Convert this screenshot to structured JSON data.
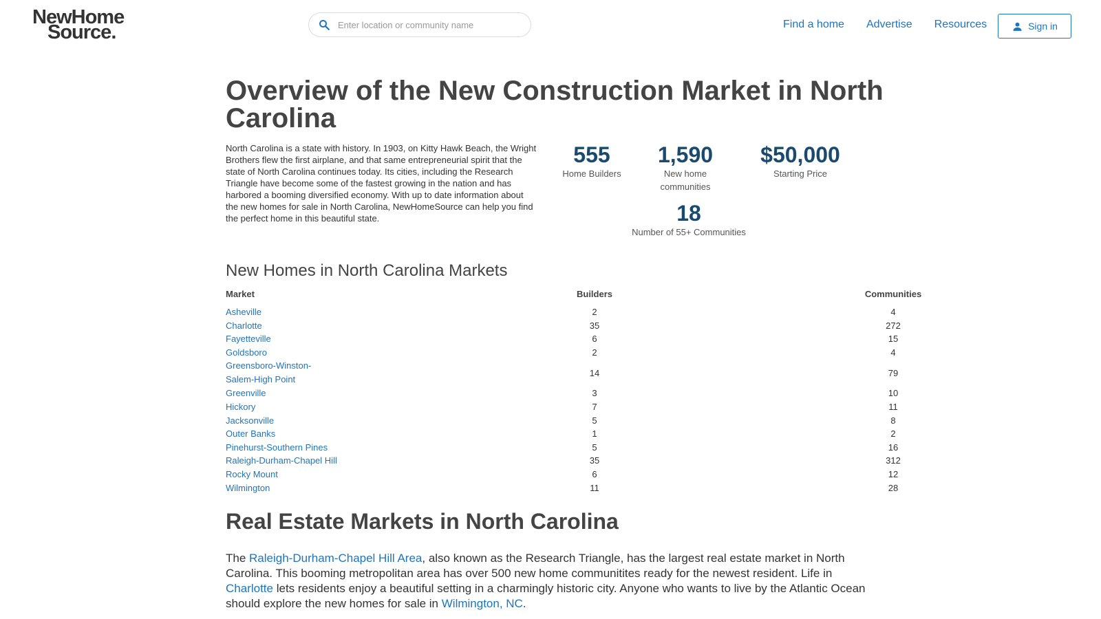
{
  "header": {
    "logo_line1": "NewHome",
    "logo_line2": "Source.",
    "search_placeholder": "Enter location or community name",
    "nav": [
      "Find a home",
      "Advertise",
      "Resources"
    ],
    "signin_label": "Sign in"
  },
  "page_title": "Overview of the New Construction Market in North Carolina",
  "intro_text": "North Carolina is a state with history. In 1903, on Kitty Hawk Beach, the Wright Brothers flew the first airplane, and that same entrepreneurial spirit that the state of North Carolina continues today. Its cities, including the Research Triangle have become some of the fastest growing in the nation and has harbored a booming diversified economy. With up to date information about the new homes for sale in North Carolina, NewHomeSource can help you find the perfect home in this beautiful state.",
  "stats": [
    {
      "value": "555",
      "label": "Home Builders"
    },
    {
      "value": "1,590",
      "label": "New home communities"
    },
    {
      "value": "$50,000",
      "label": "Starting Price"
    },
    {
      "value": "18",
      "label": "Number of 55+ Communities"
    }
  ],
  "markets_heading": "New Homes in North Carolina Markets",
  "table": {
    "headers": [
      "Market",
      "Builders",
      "Communities"
    ],
    "rows": [
      [
        "Asheville",
        "2",
        "4"
      ],
      [
        "Charlotte",
        "35",
        "272"
      ],
      [
        "Fayetteville",
        "6",
        "15"
      ],
      [
        "Goldsboro",
        "2",
        "4"
      ],
      [
        "Greensboro-Winston-Salem-High Point",
        "14",
        "79"
      ],
      [
        "Greenville",
        "3",
        "10"
      ],
      [
        "Hickory",
        "7",
        "11"
      ],
      [
        "Jacksonville",
        "5",
        "8"
      ],
      [
        "Outer Banks",
        "1",
        "2"
      ],
      [
        "Pinehurst-Southern Pines",
        "5",
        "16"
      ],
      [
        "Raleigh-Durham-Chapel Hill",
        "35",
        "312"
      ],
      [
        "Rocky Mount",
        "6",
        "12"
      ],
      [
        "Wilmington",
        "11",
        "28"
      ]
    ]
  },
  "real_estate_heading": "Real Estate Markets in North Carolina",
  "outro": {
    "t1": "The ",
    "link1": "Raleigh-Durham-Chapel Hill Area",
    "t2": ", also known as the Research Triangle, has the largest real estate market in North Carolina. This booming metropolitan area has over 500 new home communitites ready for the newest resident. Life in ",
    "link2": "Charlotte",
    "t3": " lets residents enjoy a beautiful setting in a charmingly historic city. Anyone who wants to live by the Atlantic Ocean should explore the new homes for sale in ",
    "link3": "Wilmington, NC",
    "t4": "."
  },
  "colors": {
    "link": "#1f74bd",
    "stat": "#1a4a6e",
    "text": "#444444"
  }
}
